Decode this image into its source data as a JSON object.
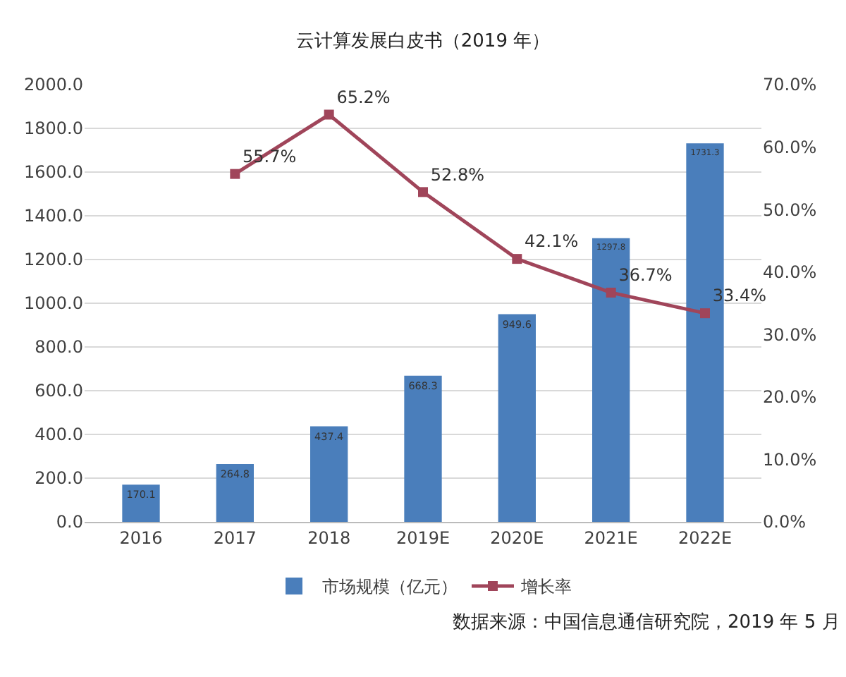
{
  "chart_data": {
    "type": "bar",
    "title": "云计算发展白皮书（2019 年）",
    "categories": [
      "2016",
      "2017",
      "2018",
      "2019E",
      "2020E",
      "2021E",
      "2022E"
    ],
    "series": [
      {
        "name": "市场规模（亿元）",
        "color": "#4a7ebb",
        "values": [
          170.1,
          264.8,
          437.4,
          668.3,
          949.6,
          1297.8,
          1731.3
        ]
      },
      {
        "name": "增长率",
        "type": "line",
        "axis": "y2",
        "color": "#a0455a",
        "marker": "square",
        "values": [
          null,
          55.7,
          65.2,
          52.8,
          42.1,
          36.7,
          33.4
        ],
        "value_labels": [
          null,
          "55.7%",
          "65.2%",
          "52.8%",
          "42.1%",
          "36.7%",
          "33.4%"
        ]
      }
    ],
    "ylim": [
      0,
      2000
    ],
    "yticks": [
      {
        "value": 0,
        "label": "0.0"
      },
      {
        "value": 200,
        "label": "200.0"
      },
      {
        "value": 400,
        "label": "400.0"
      },
      {
        "value": 600,
        "label": "600.0"
      },
      {
        "value": 800,
        "label": "800.0"
      },
      {
        "value": 1000,
        "label": "1000.0"
      },
      {
        "value": 1200,
        "label": "1200.0"
      },
      {
        "value": 1400,
        "label": "1400.0"
      },
      {
        "value": 1600,
        "label": "1600.0"
      },
      {
        "value": 1800,
        "label": "1800.0"
      },
      {
        "value": 2000,
        "label": "2000.0"
      }
    ],
    "y2lim": [
      0,
      70
    ],
    "y2ticks": [
      {
        "value": 0,
        "label": "0.0%"
      },
      {
        "value": 10,
        "label": "10.0%"
      },
      {
        "value": 20,
        "label": "20.0%"
      },
      {
        "value": 30,
        "label": "30.0%"
      },
      {
        "value": 40,
        "label": "40.0%"
      },
      {
        "value": 50,
        "label": "50.0%"
      },
      {
        "value": 60,
        "label": "60.0%"
      },
      {
        "value": 70,
        "label": "70.0%"
      }
    ],
    "grid": "y",
    "legend": "bottom",
    "data_labels": true,
    "annotations": [
      "数据来源：中国信息通信研究院，2019 年 5 月"
    ]
  }
}
